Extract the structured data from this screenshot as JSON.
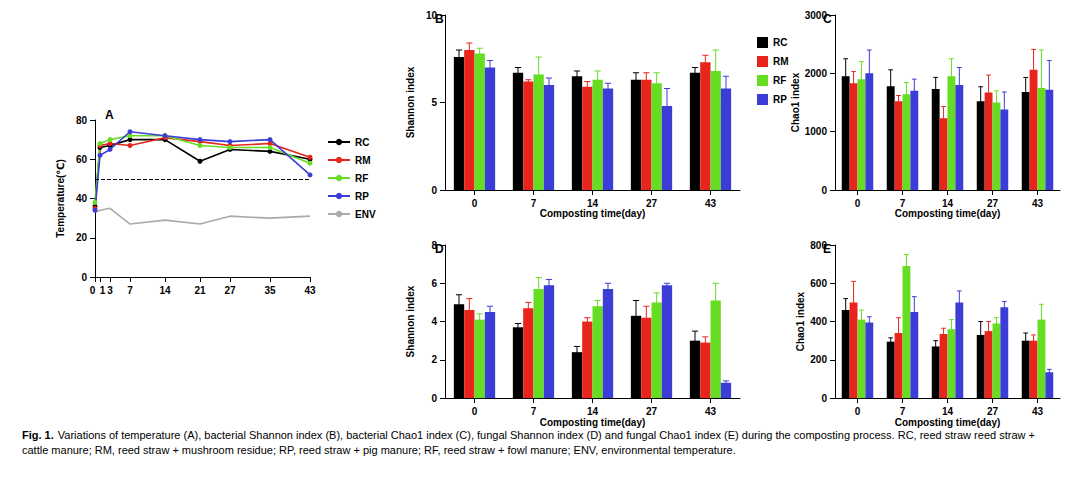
{
  "chart_data": [
    {
      "type": "line",
      "title": "A",
      "ylabel": "Temperature(℃)",
      "x": [
        0,
        1,
        3,
        7,
        14,
        21,
        27,
        35,
        43
      ],
      "xlim": [
        0,
        43
      ],
      "xticks": [
        0,
        1,
        3,
        7,
        14,
        21,
        27,
        35,
        43
      ],
      "ylim": [
        0,
        80
      ],
      "yticks": [
        0,
        20,
        40,
        60,
        80
      ],
      "grid": false,
      "legend": "right",
      "threshold": 50,
      "series": [
        {
          "name": "RC",
          "color": "#000000",
          "marker": "circle",
          "values": [
            36,
            66,
            67,
            70,
            70,
            59,
            65,
            64,
            60
          ]
        },
        {
          "name": "RM",
          "color": "#e8251c",
          "marker": "circle",
          "values": [
            35,
            67,
            68,
            67,
            71,
            69,
            67,
            68,
            61
          ]
        },
        {
          "name": "RF",
          "color": "#66dd22",
          "marker": "circle",
          "values": [
            38,
            68,
            70,
            72,
            72,
            67,
            66,
            66,
            58
          ]
        },
        {
          "name": "RP",
          "color": "#3c3cd6",
          "marker": "circle",
          "values": [
            34,
            62,
            65,
            74,
            72,
            70,
            69,
            70,
            52
          ]
        },
        {
          "name": "ENV",
          "color": "#aaaaaa",
          "marker": "none",
          "values": [
            33,
            34,
            35,
            27,
            29,
            27,
            31,
            30,
            31
          ]
        }
      ]
    },
    {
      "type": "bar",
      "title": "B",
      "xlabel": "Composting time(day)",
      "ylabel": "Shannon index",
      "categories": [
        "0",
        "7",
        "14",
        "27",
        "43"
      ],
      "ylim": [
        0,
        10
      ],
      "yticks": [
        0,
        5,
        10
      ],
      "grid": false,
      "legend": "right",
      "series": [
        {
          "name": "RC",
          "color": "#000000",
          "values": [
            7.6,
            6.7,
            6.5,
            6.3,
            6.7
          ],
          "errors": [
            0.4,
            0.3,
            0.3,
            0.4,
            0.3
          ]
        },
        {
          "name": "RM",
          "color": "#e8251c",
          "values": [
            8.0,
            6.2,
            5.9,
            6.3,
            7.3
          ],
          "errors": [
            0.4,
            0.1,
            0.3,
            0.4,
            0.4
          ]
        },
        {
          "name": "RF",
          "color": "#66dd22",
          "values": [
            7.8,
            6.6,
            6.3,
            6.1,
            6.8
          ],
          "errors": [
            0.3,
            1.0,
            0.5,
            0.6,
            1.2
          ]
        },
        {
          "name": "RP",
          "color": "#3c3cd6",
          "values": [
            7.0,
            6.0,
            5.8,
            4.8,
            5.8
          ],
          "errors": [
            0.4,
            0.4,
            0.3,
            1.0,
            0.7
          ]
        }
      ]
    },
    {
      "type": "bar",
      "title": "C",
      "xlabel": "Composting time(day)",
      "ylabel": "Chao1 index",
      "categories": [
        "0",
        "7",
        "14",
        "27",
        "43"
      ],
      "ylim": [
        0,
        3000
      ],
      "yticks": [
        0,
        1000,
        2000,
        3000
      ],
      "grid": false,
      "series": [
        {
          "name": "RC",
          "color": "#000000",
          "values": [
            1950,
            1780,
            1730,
            1520,
            1680
          ],
          "errors": [
            300,
            280,
            200,
            250,
            250
          ]
        },
        {
          "name": "RM",
          "color": "#e8251c",
          "values": [
            1830,
            1520,
            1230,
            1670,
            2060
          ],
          "errors": [
            200,
            100,
            200,
            300,
            350
          ]
        },
        {
          "name": "RF",
          "color": "#66dd22",
          "values": [
            1900,
            1640,
            1950,
            1500,
            1750
          ],
          "errors": [
            300,
            200,
            300,
            200,
            650
          ]
        },
        {
          "name": "RP",
          "color": "#3c3cd6",
          "values": [
            2000,
            1700,
            1800,
            1380,
            1720
          ],
          "errors": [
            400,
            200,
            300,
            300,
            500
          ]
        }
      ]
    },
    {
      "type": "bar",
      "title": "D",
      "xlabel": "Composting time(day)",
      "ylabel": "Shannon index",
      "categories": [
        "0",
        "7",
        "14",
        "27",
        "43"
      ],
      "ylim": [
        0,
        8
      ],
      "yticks": [
        0,
        2,
        4,
        6,
        8
      ],
      "grid": false,
      "series": [
        {
          "name": "RC",
          "color": "#000000",
          "values": [
            4.9,
            3.7,
            2.4,
            4.3,
            3.0
          ],
          "errors": [
            0.5,
            0.2,
            0.3,
            0.8,
            0.5
          ]
        },
        {
          "name": "RM",
          "color": "#e8251c",
          "values": [
            4.6,
            4.7,
            4.0,
            4.2,
            2.9
          ],
          "errors": [
            0.6,
            0.3,
            0.2,
            0.6,
            0.3
          ]
        },
        {
          "name": "RF",
          "color": "#66dd22",
          "values": [
            4.1,
            5.7,
            4.8,
            5.0,
            5.1
          ],
          "errors": [
            0.3,
            0.6,
            0.3,
            0.5,
            0.9
          ]
        },
        {
          "name": "RP",
          "color": "#3c3cd6",
          "values": [
            4.5,
            5.9,
            5.7,
            5.9,
            0.8
          ],
          "errors": [
            0.3,
            0.3,
            0.3,
            0.1,
            0.1
          ]
        }
      ]
    },
    {
      "type": "bar",
      "title": "E",
      "xlabel": "Composting time(day)",
      "ylabel": "Chao1 index",
      "categories": [
        "0",
        "7",
        "14",
        "27",
        "43"
      ],
      "ylim": [
        0,
        800
      ],
      "yticks": [
        0,
        200,
        400,
        600,
        800
      ],
      "grid": false,
      "series": [
        {
          "name": "RC",
          "color": "#000000",
          "values": [
            460,
            295,
            270,
            330,
            300
          ],
          "errors": [
            60,
            20,
            30,
            70,
            40
          ]
        },
        {
          "name": "RM",
          "color": "#e8251c",
          "values": [
            500,
            340,
            335,
            350,
            300
          ],
          "errors": [
            110,
            80,
            30,
            50,
            30
          ]
        },
        {
          "name": "RF",
          "color": "#66dd22",
          "values": [
            410,
            690,
            360,
            390,
            410
          ],
          "errors": [
            50,
            60,
            50,
            30,
            80
          ]
        },
        {
          "name": "RP",
          "color": "#3c3cd6",
          "values": [
            395,
            450,
            500,
            475,
            135
          ],
          "errors": [
            30,
            80,
            60,
            30,
            15
          ]
        }
      ]
    }
  ],
  "caption": {
    "label": "Fig. 1.",
    "text": "Variations of temperature (A), bacterial Shannon index (B), bacterial Chao1 index (C), fungal Shannon index (D) and fungal Chao1 index (E) during the composting process. RC, reed straw reed straw + cattle manure; RM, reed straw + mushroom residue; RP, reed straw + pig manure; RF, reed straw + fowl manure; ENV, environmental temperature."
  }
}
